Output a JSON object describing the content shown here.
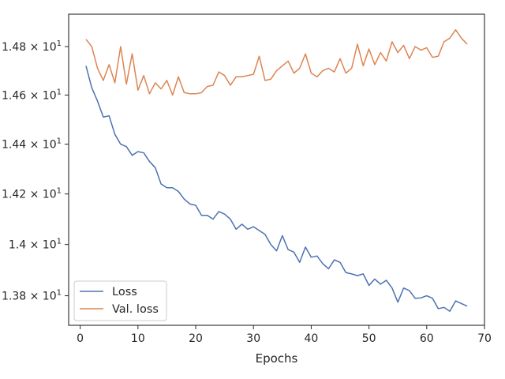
{
  "chart_data": {
    "type": "line",
    "title": "",
    "xlabel": "Epochs",
    "ylabel": "",
    "xlim": [
      -2,
      70
    ],
    "ylim": [
      13.686,
      14.935
    ],
    "y_scale": "log",
    "grid": false,
    "legend_position": "lower-left",
    "x_ticks": [
      0,
      10,
      20,
      30,
      40,
      50,
      60,
      70
    ],
    "x_tick_labels": [
      "0",
      "10",
      "20",
      "30",
      "40",
      "50",
      "60",
      "70"
    ],
    "y_ticks": [
      13.8,
      14.0,
      14.2,
      14.4,
      14.6,
      14.8
    ],
    "y_tick_labels": [
      "1.38 × 10^1",
      "1.4 × 10^1",
      "1.42 × 10^1",
      "1.44 × 10^1",
      "1.46 × 10^1",
      "1.48 × 10^1"
    ],
    "x": [
      1,
      2,
      3,
      4,
      5,
      6,
      7,
      8,
      9,
      10,
      11,
      12,
      13,
      14,
      15,
      16,
      17,
      18,
      19,
      20,
      21,
      22,
      23,
      24,
      25,
      26,
      27,
      28,
      29,
      30,
      31,
      32,
      33,
      34,
      35,
      36,
      37,
      38,
      39,
      40,
      41,
      42,
      43,
      44,
      45,
      46,
      47,
      48,
      49,
      50,
      51,
      52,
      53,
      54,
      55,
      56,
      57,
      58,
      59,
      60,
      61,
      62,
      63,
      64,
      65,
      66,
      67
    ],
    "series": [
      {
        "name": "Loss",
        "color": "#4c72b0",
        "values": [
          14.72,
          14.63,
          14.575,
          14.51,
          14.515,
          14.44,
          14.4,
          14.39,
          14.355,
          14.37,
          14.365,
          14.33,
          14.305,
          14.24,
          14.225,
          14.225,
          14.21,
          14.18,
          14.16,
          14.155,
          14.115,
          14.115,
          14.1,
          14.13,
          14.12,
          14.1,
          14.06,
          14.08,
          14.06,
          14.07,
          14.055,
          14.04,
          14.0,
          13.975,
          14.035,
          13.98,
          13.97,
          13.93,
          13.99,
          13.95,
          13.955,
          13.925,
          13.905,
          13.94,
          13.93,
          13.89,
          13.885,
          13.878,
          13.885,
          13.84,
          13.865,
          13.845,
          13.86,
          13.83,
          13.775,
          13.83,
          13.82,
          13.79,
          13.792,
          13.8,
          13.79,
          13.75,
          13.755,
          13.74,
          13.78,
          13.77,
          13.76
        ]
      },
      {
        "name": "Val. loss",
        "color": "#dd8452",
        "values": [
          14.83,
          14.8,
          14.71,
          14.66,
          14.725,
          14.65,
          14.8,
          14.645,
          14.77,
          14.62,
          14.68,
          14.605,
          14.65,
          14.625,
          14.66,
          14.6,
          14.675,
          14.61,
          14.605,
          14.605,
          14.61,
          14.635,
          14.64,
          14.695,
          14.68,
          14.64,
          14.675,
          14.675,
          14.68,
          14.685,
          14.76,
          14.66,
          14.665,
          14.7,
          14.72,
          14.74,
          14.69,
          14.71,
          14.77,
          14.69,
          14.675,
          14.7,
          14.71,
          14.695,
          14.75,
          14.69,
          14.71,
          14.81,
          14.72,
          14.79,
          14.725,
          14.775,
          14.74,
          14.82,
          14.775,
          14.805,
          14.75,
          14.8,
          14.785,
          14.795,
          14.755,
          14.76,
          14.82,
          14.835,
          14.87,
          14.835,
          14.81
        ]
      }
    ]
  }
}
